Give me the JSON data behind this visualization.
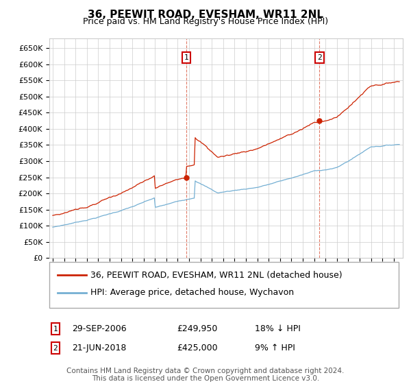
{
  "title": "36, PEEWIT ROAD, EVESHAM, WR11 2NL",
  "subtitle": "Price paid vs. HM Land Registry's House Price Index (HPI)",
  "ylim": [
    0,
    680000
  ],
  "yticks": [
    0,
    50000,
    100000,
    150000,
    200000,
    250000,
    300000,
    350000,
    400000,
    450000,
    500000,
    550000,
    600000,
    650000
  ],
  "ytick_labels": [
    "£0",
    "£50K",
    "£100K",
    "£150K",
    "£200K",
    "£250K",
    "£300K",
    "£350K",
    "£400K",
    "£450K",
    "£500K",
    "£550K",
    "£600K",
    "£650K"
  ],
  "t_sale1": 2006.75,
  "t_sale2": 2018.47,
  "price_sale1": 249950,
  "price_sale2": 425000,
  "legend_line1": "36, PEEWIT ROAD, EVESHAM, WR11 2NL (detached house)",
  "legend_line2": "HPI: Average price, detached house, Wychavon",
  "sale1_date": "29-SEP-2006",
  "sale1_price": "£249,950",
  "sale1_note": "18% ↓ HPI",
  "sale2_date": "21-JUN-2018",
  "sale2_price": "£425,000",
  "sale2_note": "9% ↑ HPI",
  "footer": "Contains HM Land Registry data © Crown copyright and database right 2024.\nThis data is licensed under the Open Government Licence v3.0.",
  "hpi_color": "#74afd3",
  "price_color": "#cc2200",
  "vline_color": "#cc2200",
  "background_color": "#ffffff",
  "grid_color": "#cccccc",
  "sale_box_color": "#cc0000",
  "title_fontsize": 11,
  "subtitle_fontsize": 9,
  "tick_fontsize": 8,
  "legend_fontsize": 9,
  "footer_fontsize": 7.5
}
